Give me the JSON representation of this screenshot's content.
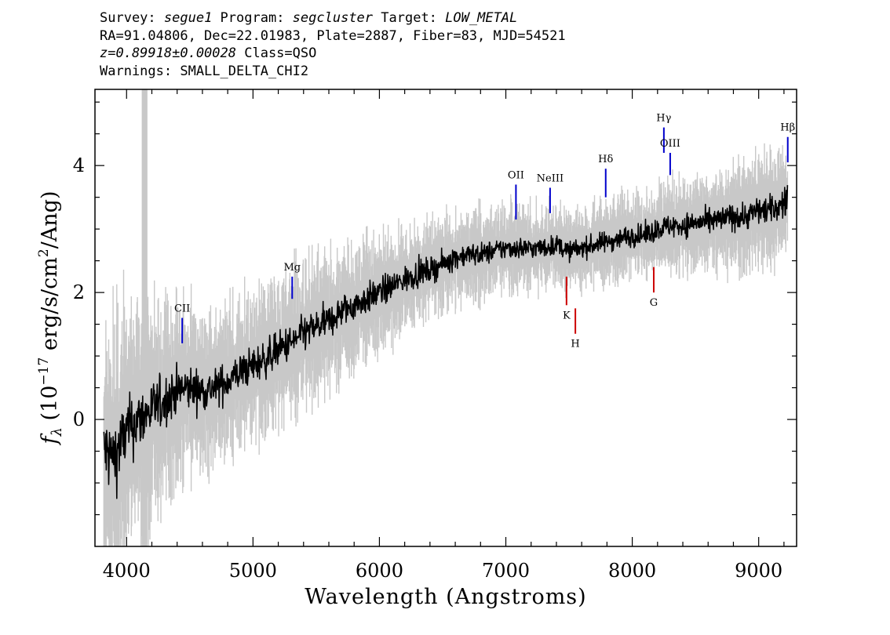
{
  "header": {
    "survey_label": "Survey: ",
    "survey": "segue1",
    "program_label": " Program: ",
    "program": "segcluster",
    "target_label": " Target: ",
    "target": "LOW_METAL",
    "line2": "RA=91.04806, Dec=22.01983, Plate=2887, Fiber=83, MJD=54521",
    "z": "z=0.89918±0.00028",
    "class_text": " Class=QSO",
    "line4": "Warnings: SMALL_DELTA_CHI2"
  },
  "chart_data": {
    "type": "line",
    "xlabel": "Wavelength (Angstroms)",
    "ylabel_parts": {
      "f": "f",
      "sub": "λ",
      "pre": " (10",
      "exp1": "−17",
      "mid": " erg/s/cm",
      "exp2": "2",
      "post": "/Ang)"
    },
    "xlim": [
      3750,
      9300
    ],
    "ylim": [
      -2.0,
      5.2
    ],
    "x_ticks": [
      4000,
      5000,
      6000,
      7000,
      8000,
      9000
    ],
    "x_tick_labels": [
      "4000",
      "5000",
      "6000",
      "7000",
      "8000",
      "9000"
    ],
    "y_ticks": [
      0,
      2,
      4
    ],
    "y_tick_labels": [
      "0",
      "2",
      "4"
    ],
    "masked_band": [
      4120,
      4165
    ],
    "colors": {
      "flux": "#000000",
      "error": "#c8c8c8",
      "emission": "#0000cc",
      "absorption": "#cc0000",
      "mask": "#c8c8c8"
    },
    "series": [
      {
        "role": "flux",
        "x": [
          3820,
          3900,
          4000,
          4100,
          4200,
          4300,
          4400,
          4500,
          4600,
          4700,
          4800,
          4900,
          5000,
          5100,
          5200,
          5300,
          5400,
          5500,
          5600,
          5700,
          5800,
          5900,
          6000,
          6100,
          6200,
          6300,
          6400,
          6500,
          6600,
          6700,
          6800,
          6900,
          7000,
          7100,
          7200,
          7300,
          7400,
          7500,
          7600,
          7700,
          7800,
          7900,
          8000,
          8100,
          8200,
          8300,
          8400,
          8500,
          8600,
          8700,
          8800,
          8900,
          9000,
          9100,
          9200,
          9230
        ],
        "y": [
          -0.5,
          -0.6,
          -0.2,
          0.0,
          0.15,
          0.3,
          0.45,
          0.5,
          0.45,
          0.5,
          0.6,
          0.75,
          0.85,
          0.95,
          1.1,
          1.2,
          1.35,
          1.45,
          1.55,
          1.7,
          1.8,
          1.9,
          2.0,
          2.1,
          2.2,
          2.3,
          2.35,
          2.45,
          2.55,
          2.6,
          2.6,
          2.65,
          2.7,
          2.7,
          2.7,
          2.7,
          2.75,
          2.65,
          2.7,
          2.75,
          2.8,
          2.85,
          2.9,
          2.9,
          3.0,
          3.05,
          3.05,
          3.1,
          3.1,
          3.15,
          3.2,
          3.2,
          3.3,
          3.3,
          3.4,
          3.5
        ]
      }
    ],
    "error_halfwidth": {
      "x": [
        3820,
        4200,
        4600,
        5500,
        6500,
        7500,
        8500,
        9230
      ],
      "values": [
        1.8,
        1.3,
        0.9,
        0.8,
        0.55,
        0.45,
        0.55,
        0.7
      ]
    },
    "lines": [
      {
        "label": "CII",
        "x": 4440,
        "y0": 1.2,
        "y1": 1.6,
        "type": "emission"
      },
      {
        "label": "Mg",
        "x": 5310,
        "y0": 1.9,
        "y1": 2.25,
        "type": "emission"
      },
      {
        "label": "OII",
        "x": 7080,
        "y0": 3.15,
        "y1": 3.7,
        "type": "emission"
      },
      {
        "label": "NeIII",
        "x": 7350,
        "y0": 3.25,
        "y1": 3.65,
        "type": "emission"
      },
      {
        "label": "Hδ",
        "x": 7790,
        "y0": 3.5,
        "y1": 3.95,
        "type": "emission"
      },
      {
        "label": "Hγ",
        "x": 8250,
        "y0": 4.2,
        "y1": 4.6,
        "type": "emission"
      },
      {
        "label": "OIII",
        "x": 8300,
        "y0": 3.85,
        "y1": 4.2,
        "type": "emission"
      },
      {
        "label": "Hβ",
        "x": 9230,
        "y0": 4.05,
        "y1": 4.45,
        "type": "emission"
      },
      {
        "label": "K",
        "x": 7480,
        "y0": 1.8,
        "y1": 2.25,
        "type": "absorption"
      },
      {
        "label": "H",
        "x": 7550,
        "y0": 1.35,
        "y1": 1.75,
        "type": "absorption"
      },
      {
        "label": "G",
        "x": 8170,
        "y0": 2.0,
        "y1": 2.4,
        "type": "absorption"
      }
    ]
  }
}
